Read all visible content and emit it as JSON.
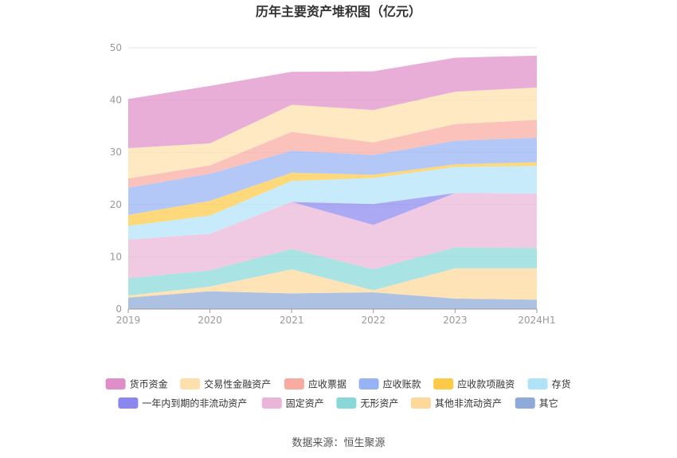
{
  "chart_data": {
    "type": "area",
    "stacked": true,
    "title": "历年主要资产堆积图（亿元）",
    "categories": [
      "2019",
      "2020",
      "2021",
      "2022",
      "2023",
      "2024H1"
    ],
    "ylim": [
      0,
      50
    ],
    "yticks": [
      0,
      10,
      20,
      30,
      40,
      50
    ],
    "grid": true,
    "legend_position": "bottom",
    "series": [
      {
        "name": "其它",
        "color": "#8eaad8",
        "values": [
          2.2,
          3.4,
          3.0,
          3.2,
          2.0,
          1.8
        ]
      },
      {
        "name": "其他非流动资产",
        "color": "#fdd89a",
        "values": [
          0.4,
          0.9,
          4.6,
          0.4,
          5.8,
          6.0
        ]
      },
      {
        "name": "无形资产",
        "color": "#89d8d8",
        "values": [
          3.3,
          3.1,
          3.9,
          4.0,
          4.0,
          3.9
        ]
      },
      {
        "name": "固定资产",
        "color": "#eab5d8",
        "values": [
          7.4,
          7.0,
          9.0,
          8.5,
          10.4,
          10.4
        ]
      },
      {
        "name": "一年内到期的非流动资产",
        "color": "#8a88ee",
        "values": [
          0,
          0,
          0,
          4.0,
          0,
          0
        ]
      },
      {
        "name": "存货",
        "color": "#b1e3f8",
        "values": [
          2.6,
          3.5,
          4.0,
          5.0,
          5.0,
          5.3
        ]
      },
      {
        "name": "应收款项融资",
        "color": "#fdca48",
        "values": [
          2.1,
          2.8,
          1.6,
          0.6,
          0.5,
          0.7
        ]
      },
      {
        "name": "应收账款",
        "color": "#97b3f5",
        "values": [
          5.2,
          5.2,
          4.2,
          3.8,
          4.5,
          4.7
        ]
      },
      {
        "name": "应收票据",
        "color": "#f8aba1",
        "values": [
          1.8,
          1.6,
          3.6,
          2.4,
          3.2,
          3.4
        ]
      },
      {
        "name": "交易性金融资产",
        "color": "#fde0ac",
        "values": [
          5.8,
          4.2,
          5.2,
          6.2,
          6.2,
          6.2
        ]
      },
      {
        "name": "货币资金",
        "color": "#df8fc7",
        "values": [
          9.4,
          11.0,
          6.3,
          7.4,
          6.5,
          6.1
        ]
      }
    ],
    "legend_order": [
      "货币资金",
      "交易性金融资产",
      "应收票据",
      "应收账款",
      "应收款项融资",
      "存货",
      "一年内到期的非流动资产",
      "固定资产",
      "无形资产",
      "其他非流动资产",
      "其它"
    ]
  },
  "source_text": "数据来源：恒生聚源"
}
